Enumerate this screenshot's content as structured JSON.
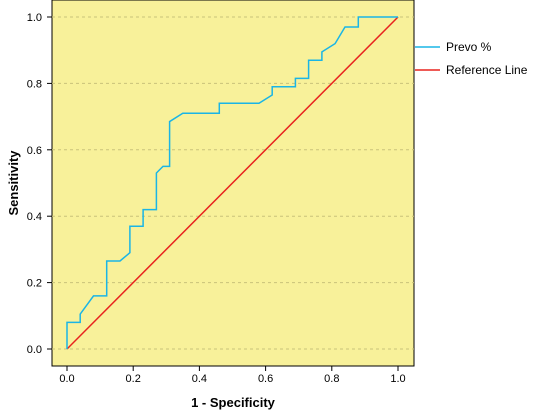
{
  "chart_data": {
    "type": "line",
    "xlabel": "1 - Specificity",
    "ylabel": "Sensitivity",
    "xlim": [
      0,
      1
    ],
    "ylim": [
      0,
      1
    ],
    "x_ticks": [
      "0.0",
      "0.2",
      "0.4",
      "0.6",
      "0.8",
      "1.0"
    ],
    "y_ticks": [
      "0.0",
      "0.2",
      "0.4",
      "0.6",
      "0.8",
      "1.0"
    ],
    "grid": "horizontal dashed",
    "legend_placement": "right",
    "plot_background": "#f8f19a",
    "series": [
      {
        "name": "Prevo %",
        "color": "#1ab5e6",
        "points": [
          [
            0.0,
            0.0
          ],
          [
            0.0,
            0.08
          ],
          [
            0.04,
            0.08
          ],
          [
            0.04,
            0.105
          ],
          [
            0.08,
            0.16
          ],
          [
            0.12,
            0.16
          ],
          [
            0.12,
            0.265
          ],
          [
            0.16,
            0.265
          ],
          [
            0.19,
            0.29
          ],
          [
            0.19,
            0.37
          ],
          [
            0.23,
            0.37
          ],
          [
            0.23,
            0.42
          ],
          [
            0.27,
            0.42
          ],
          [
            0.27,
            0.53
          ],
          [
            0.29,
            0.55
          ],
          [
            0.31,
            0.55
          ],
          [
            0.31,
            0.685
          ],
          [
            0.35,
            0.71
          ],
          [
            0.46,
            0.71
          ],
          [
            0.46,
            0.74
          ],
          [
            0.58,
            0.74
          ],
          [
            0.62,
            0.765
          ],
          [
            0.62,
            0.79
          ],
          [
            0.69,
            0.79
          ],
          [
            0.69,
            0.815
          ],
          [
            0.73,
            0.815
          ],
          [
            0.73,
            0.87
          ],
          [
            0.77,
            0.87
          ],
          [
            0.77,
            0.895
          ],
          [
            0.81,
            0.92
          ],
          [
            0.84,
            0.97
          ],
          [
            0.88,
            0.97
          ],
          [
            0.88,
            1.0
          ],
          [
            1.0,
            1.0
          ]
        ]
      },
      {
        "name": "Reference Line",
        "color": "#e8231e",
        "points": [
          [
            0.0,
            0.0
          ],
          [
            1.0,
            1.0
          ]
        ]
      }
    ]
  }
}
